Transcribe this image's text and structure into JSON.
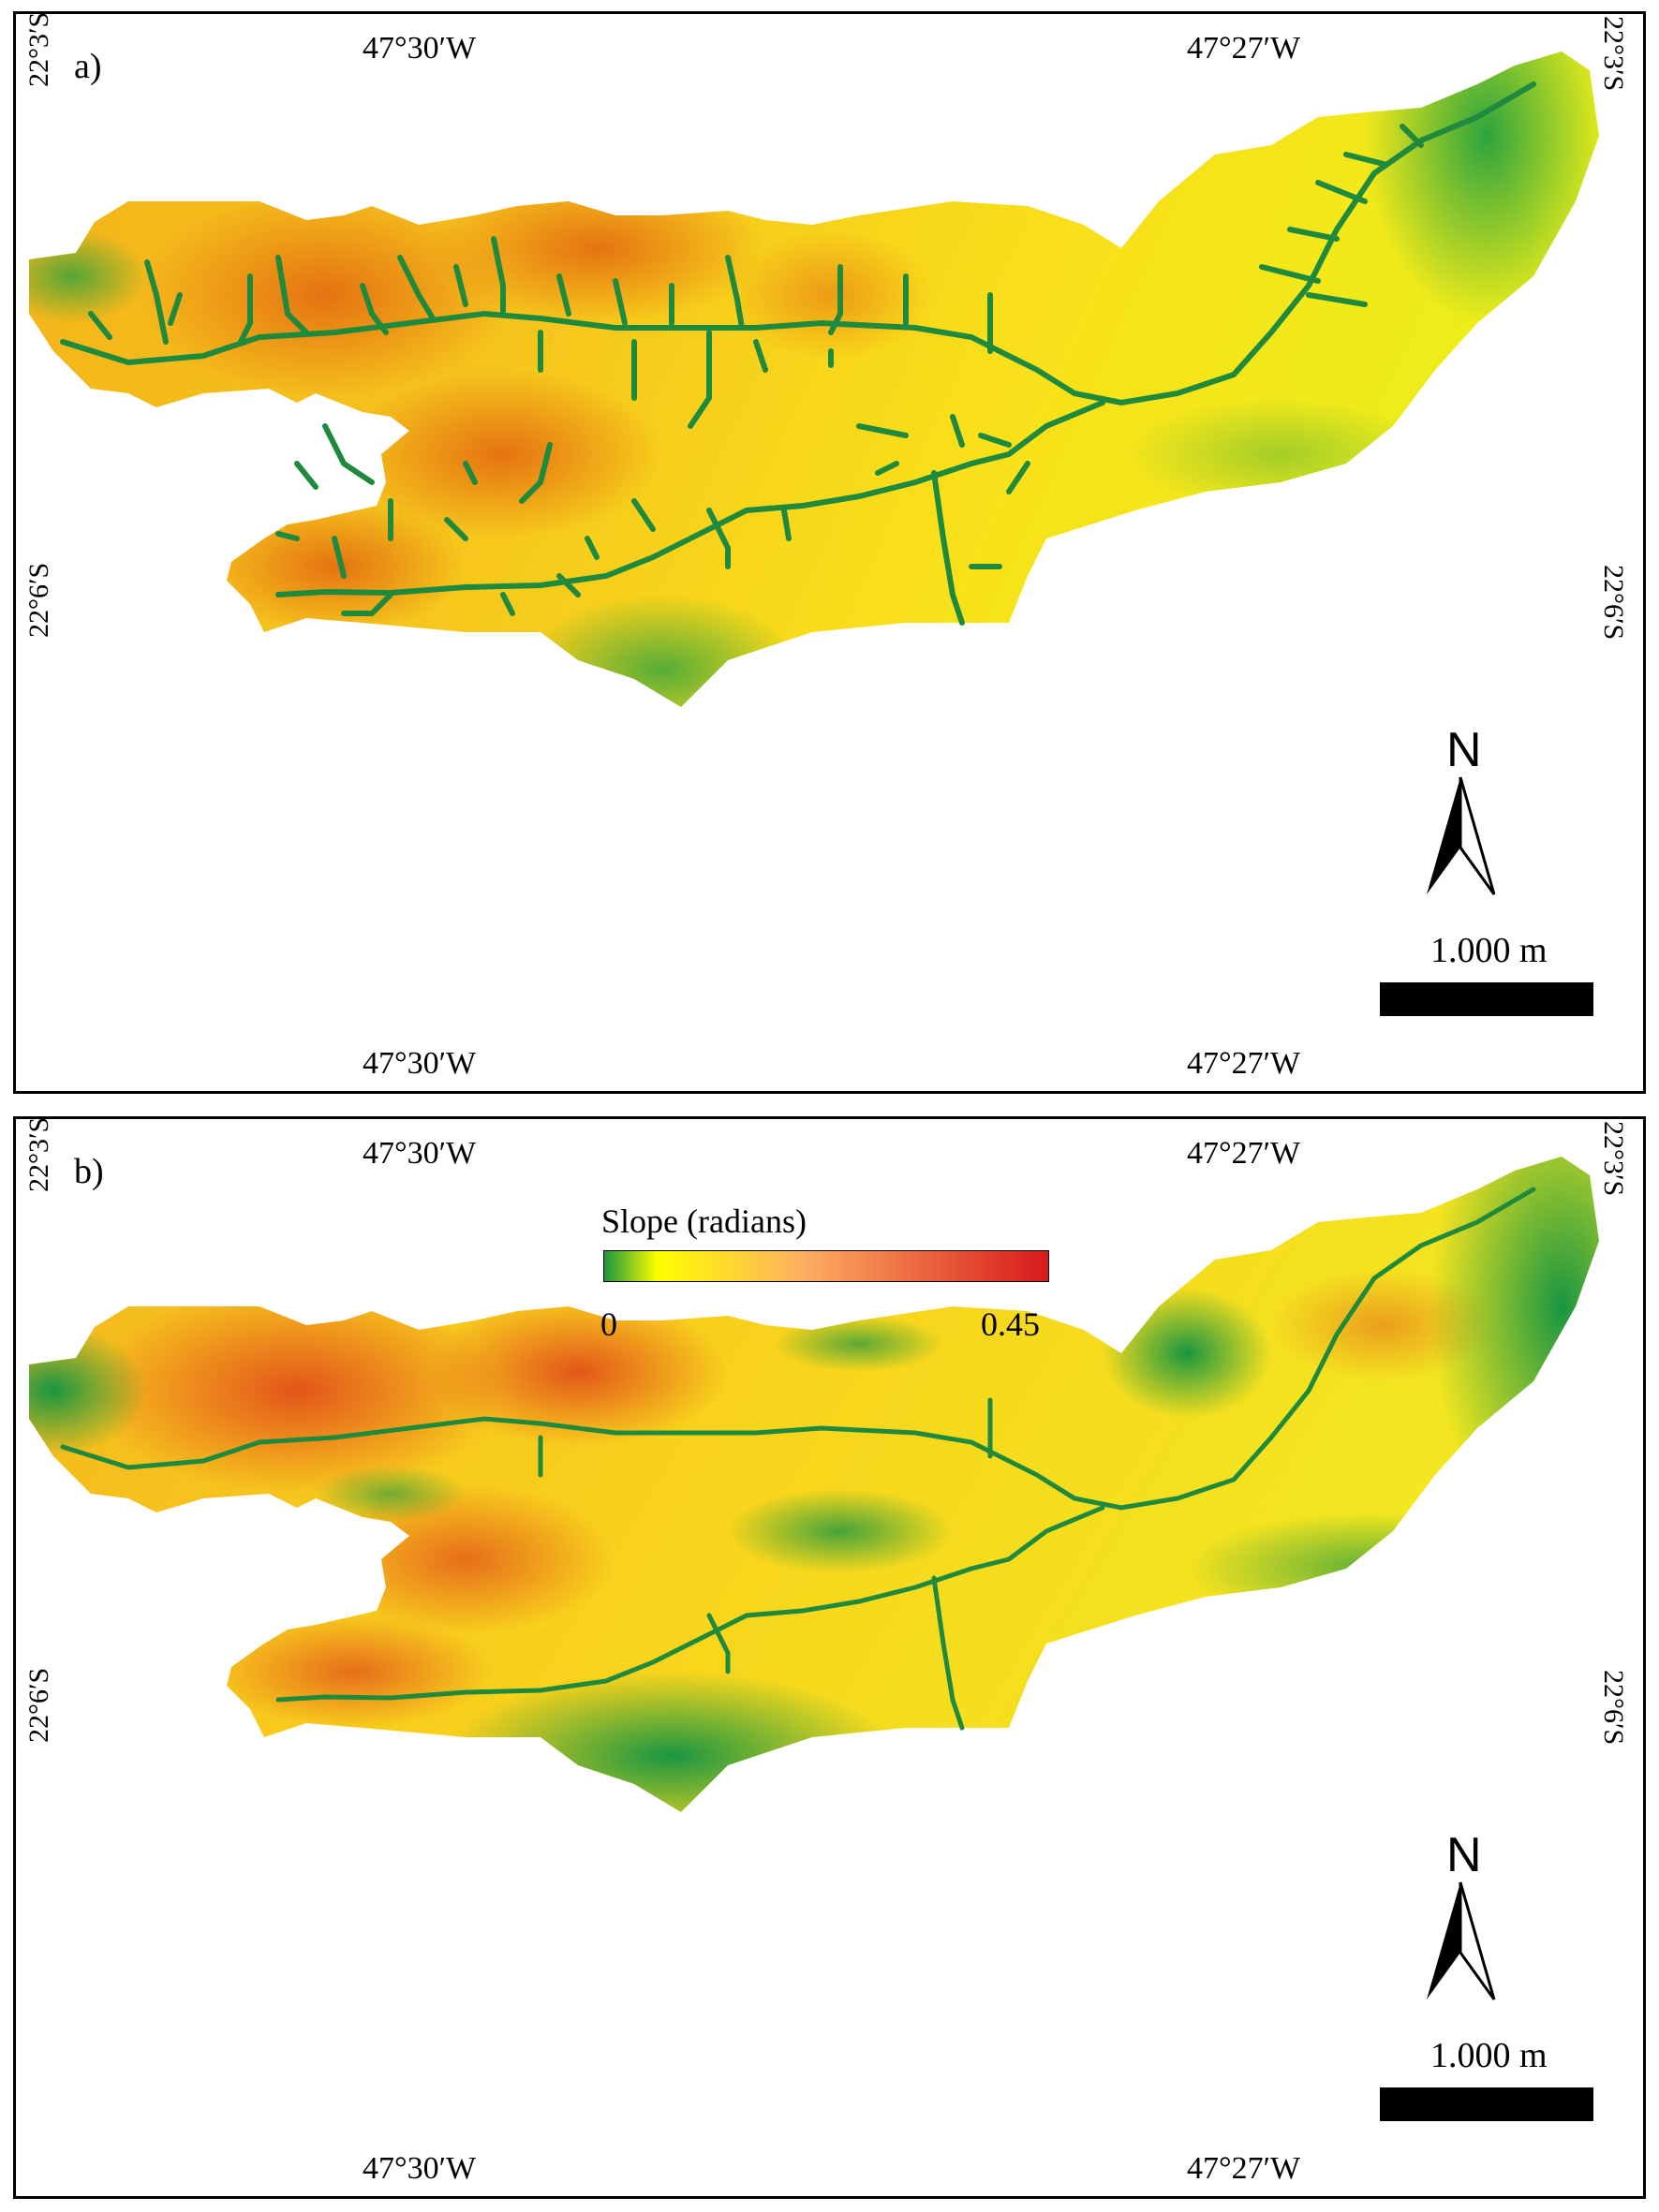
{
  "panels": [
    {
      "label": "a)",
      "lon_labels": [
        "47°30′W",
        "47°27′W"
      ],
      "lat_labels": [
        "22°3′S",
        "22°6′S"
      ],
      "north_label": "N",
      "scale_label": "1.000 m"
    },
    {
      "label": "b)",
      "lon_labels": [
        "47°30′W",
        "47°27′W"
      ],
      "lat_labels": [
        "22°3′S",
        "22°6′S"
      ],
      "north_label": "N",
      "scale_label": "1.000 m",
      "legend": {
        "title": "Slope (radians)",
        "min_label": "0",
        "max_label": "0.45",
        "colors": [
          "#1a9641",
          "#ffff00",
          "#fdae61",
          "#d7191c"
        ]
      }
    }
  ],
  "colors": {
    "stream": "#1f8a3e",
    "low": "#1a9641",
    "mid": "#ffff00",
    "high": "#d7191c"
  }
}
